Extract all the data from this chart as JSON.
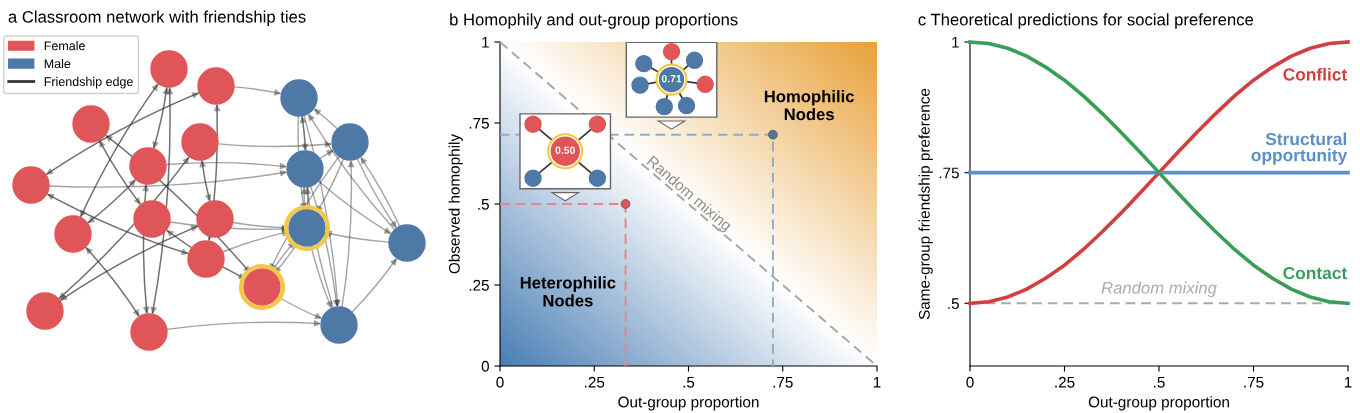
{
  "chart_data": [
    {
      "type": "other",
      "title": "a Classroom network with friendship ties",
      "legend": "top left",
      "series": [
        {
          "name": "Female",
          "type": "bar",
          "color": "#e05557"
        },
        {
          "name": "Male",
          "type": "bar",
          "color": "#4e79a7"
        },
        {
          "name": "Friendship edge",
          "type": "line",
          "color": "#333333"
        }
      ]
    },
    {
      "type": "scatter",
      "title": "b Homophily and out-group proportions",
      "xlabel": "Out-group proportion",
      "ylabel": "Observed homophily",
      "xlim": [
        0,
        1
      ],
      "ylim": [
        0,
        1
      ],
      "xticks": [
        0,
        {
          "value": 0.25,
          "label": ".25"
        },
        {
          "value": 0.5,
          "label": ".5"
        },
        {
          "value": 0.75,
          "label": ".75"
        },
        1
      ],
      "yticks": [
        0,
        {
          "value": 0.25,
          "label": ".25"
        },
        {
          "value": 0.5,
          "label": ".5"
        },
        {
          "value": 0.75,
          "label": ".75"
        },
        1
      ],
      "annotations": [
        "Homophilic\nNodes",
        "Heterophilic\nNodes",
        "0.50",
        "0.71"
      ],
      "series": [
        {
          "name": "Random mixing",
          "type": "line",
          "line_style": "dashed",
          "color": "#a6a6a6",
          "x": [
            0,
            1
          ],
          "values": [
            1,
            0
          ]
        },
        {
          "type": "line",
          "line_style": "dashed",
          "color": "#e8848a",
          "x": [
            0,
            0.333,
            0.333
          ],
          "values": [
            0.5,
            0.5,
            0
          ]
        },
        {
          "type": "line",
          "line_style": "dashed",
          "color": "#8fadd0",
          "x": [
            0,
            0.724,
            0.724
          ],
          "values": [
            0.714,
            0.714,
            0
          ]
        },
        {
          "type": "scatter",
          "marker": "circle",
          "color": "#e05557",
          "x": [
            0.333
          ],
          "values": [
            0.5
          ]
        },
        {
          "type": "scatter",
          "marker": "circle",
          "color": "#4e79a7",
          "x": [
            0.724
          ],
          "values": [
            0.714
          ]
        }
      ]
    },
    {
      "type": "line",
      "title": "c Theoretical predictions for social preference",
      "xlabel": "Out-group proportion",
      "ylabel": "Same-group friendship preference",
      "xlim": [
        0,
        1
      ],
      "ylim": [
        0.38,
        1
      ],
      "xticks": [
        0,
        {
          "value": 0.25,
          "label": ".25"
        },
        {
          "value": 0.5,
          "label": ".5"
        },
        {
          "value": 0.75,
          "label": ".75"
        },
        1
      ],
      "yticks": [
        {
          "value": 0.5,
          "label": ".5"
        },
        {
          "value": 0.75,
          "label": ".75"
        },
        1
      ],
      "x": [
        0,
        0.05,
        0.1,
        0.15,
        0.2,
        0.25,
        0.3,
        0.35,
        0.4,
        0.45,
        0.5,
        0.55,
        0.6,
        0.65,
        0.7,
        0.75,
        0.8,
        0.85,
        0.9,
        0.95,
        1
      ],
      "ref_lines": [
        {
          "axis": "y",
          "value": 0.5,
          "label": "Random mixing",
          "color": "#aaaaaa",
          "line_style": "dashed"
        }
      ],
      "series": [
        {
          "name": "Conflict",
          "color": "#d33f3f",
          "values": [
            0.5,
            0.503,
            0.512,
            0.527,
            0.548,
            0.573,
            0.603,
            0.637,
            0.673,
            0.711,
            0.75,
            0.789,
            0.827,
            0.863,
            0.897,
            0.927,
            0.952,
            0.973,
            0.988,
            0.997,
            1
          ]
        },
        {
          "name": "Structural\nopportunity",
          "color": "#5b8fc7",
          "x": [
            0,
            1
          ],
          "values": [
            0.75,
            0.75
          ]
        },
        {
          "name": "Contact",
          "color": "#3a9e5b",
          "values": [
            1,
            0.997,
            0.988,
            0.973,
            0.952,
            0.927,
            0.897,
            0.863,
            0.827,
            0.789,
            0.75,
            0.711,
            0.673,
            0.637,
            0.603,
            0.573,
            0.548,
            0.527,
            0.512,
            0.503,
            0.5
          ]
        }
      ]
    }
  ]
}
